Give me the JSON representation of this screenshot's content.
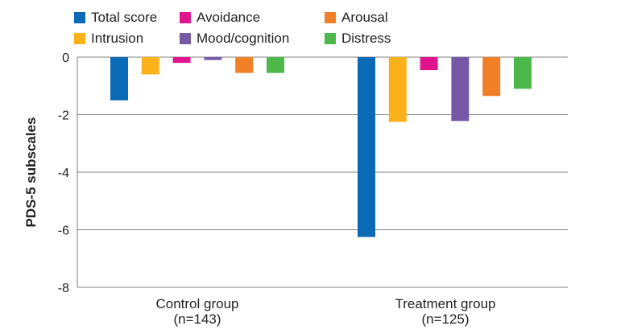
{
  "chart_data": {
    "type": "bar",
    "title": "",
    "xlabel": "",
    "ylabel": "PDS-5 subscales",
    "ylim": [
      -8,
      0
    ],
    "yticks": [
      0,
      -2,
      -4,
      -6,
      -8
    ],
    "yticks_labels": [
      "0",
      "-2",
      "-4",
      "-6",
      "-8"
    ],
    "grid": true,
    "legend_position": "top",
    "categories": [
      {
        "line1": "Control group",
        "line2": "(n=143)"
      },
      {
        "line1": "Treatment group",
        "line2": "(n=125)"
      }
    ],
    "series": [
      {
        "name": "Total score",
        "color": "#0a6ab5",
        "values": [
          -1.5,
          -6.25
        ]
      },
      {
        "name": "Intrusion",
        "color": "#fbb21a",
        "values": [
          -0.6,
          -2.25
        ]
      },
      {
        "name": "Avoidance",
        "color": "#e0148c",
        "values": [
          -0.2,
          -0.45
        ]
      },
      {
        "name": "Mood/cognition",
        "color": "#7559a6",
        "values": [
          -0.1,
          -2.22
        ]
      },
      {
        "name": "Arousal",
        "color": "#f07f27",
        "values": [
          -0.55,
          -1.35
        ]
      },
      {
        "name": "Distress",
        "color": "#4cb84a",
        "values": [
          -0.55,
          -1.1
        ]
      }
    ],
    "legend_order": [
      "Total score",
      "Avoidance",
      "Arousal",
      "Intrusion",
      "Mood/cognition",
      "Distress"
    ]
  }
}
